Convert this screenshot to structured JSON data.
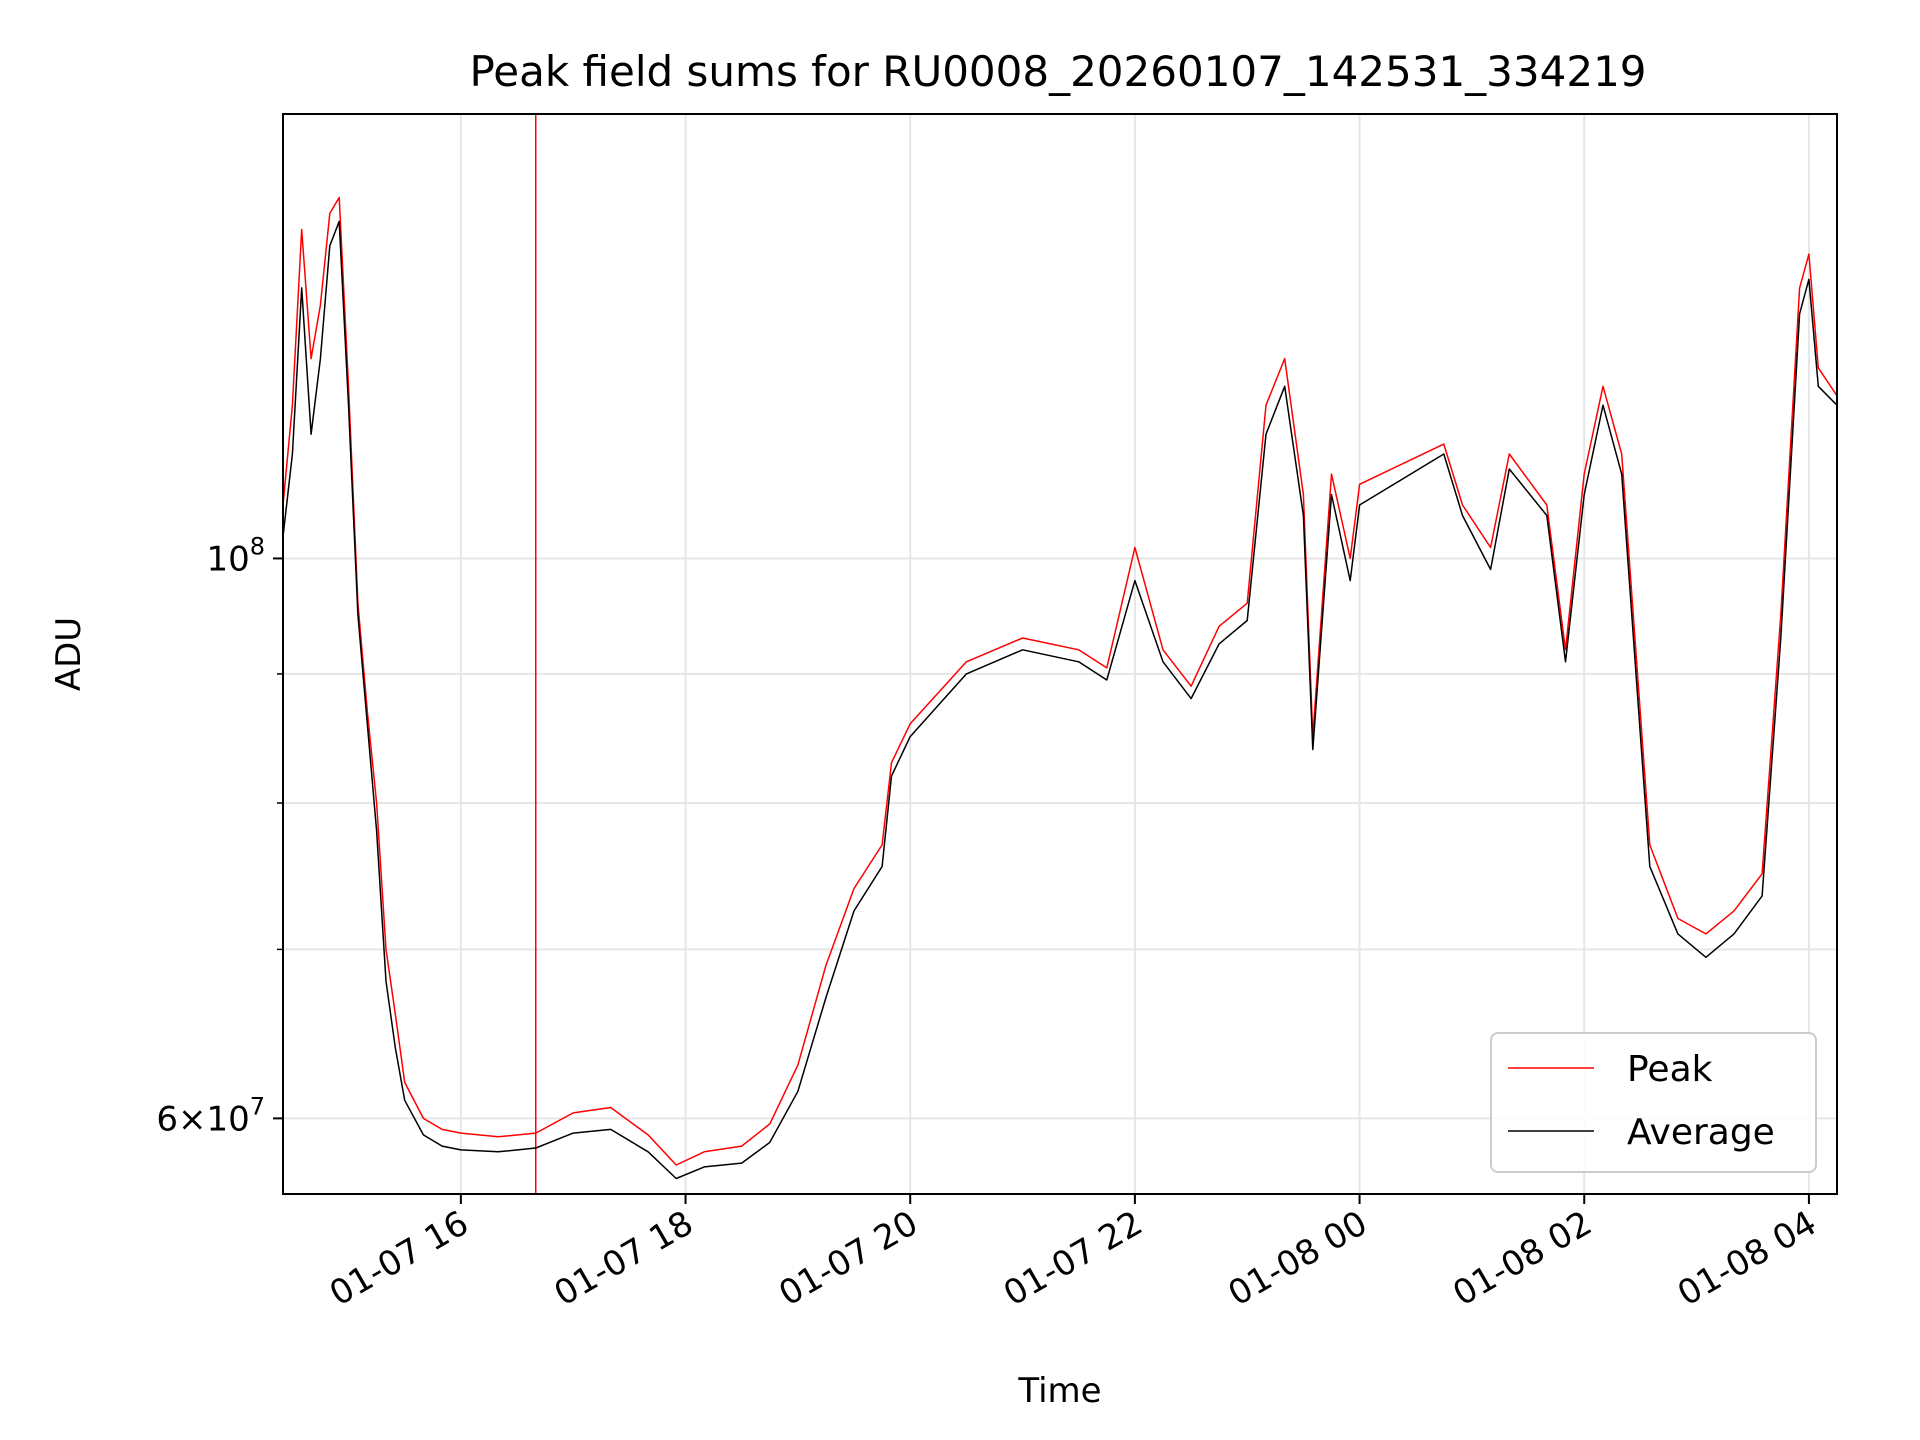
{
  "chart_data": {
    "type": "line",
    "title": "Peak field sums for RU0008_20260107_142531_334219",
    "xlabel": "Time",
    "ylabel": "ADU",
    "x_axis": "datetime",
    "y_scale": "log",
    "xlim": [
      "2026-01-07 14:25",
      "2026-01-08 04:15"
    ],
    "ylim": [
      56000000.0,
      150000000.0
    ],
    "x_ticks": [
      {
        "t": "2026-01-07 16:00",
        "label": "01-07 16"
      },
      {
        "t": "2026-01-07 18:00",
        "label": "01-07 18"
      },
      {
        "t": "2026-01-07 20:00",
        "label": "01-07 20"
      },
      {
        "t": "2026-01-07 22:00",
        "label": "01-07 22"
      },
      {
        "t": "2026-01-08 00:00",
        "label": "01-08 00"
      },
      {
        "t": "2026-01-08 02:00",
        "label": "01-08 02"
      },
      {
        "t": "2026-01-08 04:00",
        "label": "01-08 04"
      }
    ],
    "y_ticks_major": [
      {
        "v": 100000000.0,
        "base": "10",
        "exp": "8"
      },
      {
        "v": 60000000.0,
        "mant": "6",
        "base": "10",
        "exp": "7"
      }
    ],
    "y_ticks_minor": [
      70000000.0,
      80000000.0,
      90000000.0
    ],
    "grid": true,
    "legend_position": "lower right",
    "series": [
      {
        "name": "Peak",
        "color": "#ff0000",
        "spike": {
          "t": "2026-01-07 16:40",
          "v": 150000000.0
        },
        "points": [
          [
            "2026-01-07 14:25",
            105000000.0
          ],
          [
            "2026-01-07 14:30",
            115000000.0
          ],
          [
            "2026-01-07 14:35",
            135000000.0
          ],
          [
            "2026-01-07 14:40",
            120000000.0
          ],
          [
            "2026-01-07 14:45",
            126000000.0
          ],
          [
            "2026-01-07 14:50",
            137000000.0
          ],
          [
            "2026-01-07 14:55",
            139000000.0
          ],
          [
            "2026-01-07 15:00",
            117000000.0
          ],
          [
            "2026-01-07 15:05",
            96000000.0
          ],
          [
            "2026-01-07 15:10",
            87000000.0
          ],
          [
            "2026-01-07 15:15",
            80000000.0
          ],
          [
            "2026-01-07 15:20",
            70000000.0
          ],
          [
            "2026-01-07 15:25",
            66000000.0
          ],
          [
            "2026-01-07 15:30",
            62000000.0
          ],
          [
            "2026-01-07 15:40",
            60000000.0
          ],
          [
            "2026-01-07 15:50",
            59400000.0
          ],
          [
            "2026-01-07 16:00",
            59200000.0
          ],
          [
            "2026-01-07 16:20",
            59000000.0
          ],
          [
            "2026-01-07 16:40",
            59200000.0
          ],
          [
            "2026-01-07 17:00",
            60300000.0
          ],
          [
            "2026-01-07 17:20",
            60600000.0
          ],
          [
            "2026-01-07 17:40",
            59100000.0
          ],
          [
            "2026-01-07 17:55",
            57500000.0
          ],
          [
            "2026-01-07 18:10",
            58200000.0
          ],
          [
            "2026-01-07 18:30",
            58500000.0
          ],
          [
            "2026-01-07 18:45",
            59700000.0
          ],
          [
            "2026-01-07 19:00",
            63000000.0
          ],
          [
            "2026-01-07 19:15",
            69000000.0
          ],
          [
            "2026-01-07 19:30",
            74000000.0
          ],
          [
            "2026-01-07 19:45",
            77000000.0
          ],
          [
            "2026-01-07 19:50",
            83000000.0
          ],
          [
            "2026-01-07 20:00",
            86000000.0
          ],
          [
            "2026-01-07 20:30",
            91000000.0
          ],
          [
            "2026-01-07 21:00",
            93000000.0
          ],
          [
            "2026-01-07 21:30",
            92000000.0
          ],
          [
            "2026-01-07 21:45",
            90500000.0
          ],
          [
            "2026-01-07 22:00",
            101000000.0
          ],
          [
            "2026-01-07 22:15",
            92000000.0
          ],
          [
            "2026-01-07 22:30",
            89000000.0
          ],
          [
            "2026-01-07 22:45",
            94000000.0
          ],
          [
            "2026-01-07 23:00",
            96000000.0
          ],
          [
            "2026-01-07 23:10",
            115000000.0
          ],
          [
            "2026-01-07 23:20",
            120000000.0
          ],
          [
            "2026-01-07 23:30",
            106000000.0
          ],
          [
            "2026-01-07 23:35",
            85000000.0
          ],
          [
            "2026-01-07 23:45",
            108000000.0
          ],
          [
            "2026-01-07 23:55",
            100000000.0
          ],
          [
            "2026-01-08 00:00",
            107000000.0
          ],
          [
            "2026-01-08 00:45",
            111000000.0
          ],
          [
            "2026-01-08 00:55",
            105000000.0
          ],
          [
            "2026-01-08 01:10",
            101000000.0
          ],
          [
            "2026-01-08 01:20",
            110000000.0
          ],
          [
            "2026-01-08 01:40",
            105000000.0
          ],
          [
            "2026-01-08 01:50",
            92000000.0
          ],
          [
            "2026-01-08 02:00",
            108000000.0
          ],
          [
            "2026-01-08 02:10",
            117000000.0
          ],
          [
            "2026-01-08 02:20",
            110000000.0
          ],
          [
            "2026-01-08 02:35",
            77000000.0
          ],
          [
            "2026-01-08 02:50",
            72000000.0
          ],
          [
            "2026-01-08 03:05",
            71000000.0
          ],
          [
            "2026-01-08 03:20",
            72500000.0
          ],
          [
            "2026-01-08 03:35",
            75000000.0
          ],
          [
            "2026-01-08 03:45",
            95000000.0
          ],
          [
            "2026-01-08 03:55",
            128000000.0
          ],
          [
            "2026-01-08 04:00",
            132000000.0
          ],
          [
            "2026-01-08 04:05",
            119000000.0
          ],
          [
            "2026-01-08 04:15",
            116000000.0
          ]
        ]
      },
      {
        "name": "Average",
        "color": "#000000",
        "points": [
          [
            "2026-01-07 14:25",
            102000000.0
          ],
          [
            "2026-01-07 14:30",
            110000000.0
          ],
          [
            "2026-01-07 14:35",
            128000000.0
          ],
          [
            "2026-01-07 14:40",
            112000000.0
          ],
          [
            "2026-01-07 14:45",
            120000000.0
          ],
          [
            "2026-01-07 14:50",
            133000000.0
          ],
          [
            "2026-01-07 14:55",
            136000000.0
          ],
          [
            "2026-01-07 15:00",
            115000000.0
          ],
          [
            "2026-01-07 15:05",
            95000000.0
          ],
          [
            "2026-01-07 15:10",
            86000000.0
          ],
          [
            "2026-01-07 15:15",
            78000000.0
          ],
          [
            "2026-01-07 15:20",
            68000000.0
          ],
          [
            "2026-01-07 15:25",
            64000000.0
          ],
          [
            "2026-01-07 15:30",
            61000000.0
          ],
          [
            "2026-01-07 15:40",
            59100000.0
          ],
          [
            "2026-01-07 15:50",
            58500000.0
          ],
          [
            "2026-01-07 16:00",
            58300000.0
          ],
          [
            "2026-01-07 16:20",
            58200000.0
          ],
          [
            "2026-01-07 16:40",
            58400000.0
          ],
          [
            "2026-01-07 17:00",
            59200000.0
          ],
          [
            "2026-01-07 17:20",
            59400000.0
          ],
          [
            "2026-01-07 17:40",
            58200000.0
          ],
          [
            "2026-01-07 17:55",
            56800000.0
          ],
          [
            "2026-01-07 18:10",
            57400000.0
          ],
          [
            "2026-01-07 18:30",
            57600000.0
          ],
          [
            "2026-01-07 18:45",
            58700000.0
          ],
          [
            "2026-01-07 19:00",
            61500000.0
          ],
          [
            "2026-01-07 19:15",
            67000000.0
          ],
          [
            "2026-01-07 19:30",
            72500000.0
          ],
          [
            "2026-01-07 19:45",
            75500000.0
          ],
          [
            "2026-01-07 19:50",
            82000000.0
          ],
          [
            "2026-01-07 20:00",
            85000000.0
          ],
          [
            "2026-01-07 20:30",
            90000000.0
          ],
          [
            "2026-01-07 21:00",
            92000000.0
          ],
          [
            "2026-01-07 21:30",
            91000000.0
          ],
          [
            "2026-01-07 21:45",
            89500000.0
          ],
          [
            "2026-01-07 22:00",
            98000000.0
          ],
          [
            "2026-01-07 22:15",
            91000000.0
          ],
          [
            "2026-01-07 22:30",
            88000000.0
          ],
          [
            "2026-01-07 22:45",
            92500000.0
          ],
          [
            "2026-01-07 23:00",
            94500000.0
          ],
          [
            "2026-01-07 23:10",
            112000000.0
          ],
          [
            "2026-01-07 23:20",
            117000000.0
          ],
          [
            "2026-01-07 23:30",
            104000000.0
          ],
          [
            "2026-01-07 23:35",
            84000000.0
          ],
          [
            "2026-01-07 23:45",
            106000000.0
          ],
          [
            "2026-01-07 23:55",
            98000000.0
          ],
          [
            "2026-01-08 00:00",
            105000000.0
          ],
          [
            "2026-01-08 00:45",
            110000000.0
          ],
          [
            "2026-01-08 00:55",
            104000000.0
          ],
          [
            "2026-01-08 01:10",
            99000000.0
          ],
          [
            "2026-01-08 01:20",
            108500000.0
          ],
          [
            "2026-01-08 01:40",
            104000000.0
          ],
          [
            "2026-01-08 01:50",
            91000000.0
          ],
          [
            "2026-01-08 02:00",
            106000000.0
          ],
          [
            "2026-01-08 02:10",
            115000000.0
          ],
          [
            "2026-01-08 02:20",
            108000000.0
          ],
          [
            "2026-01-08 02:35",
            75500000.0
          ],
          [
            "2026-01-08 02:50",
            71000000.0
          ],
          [
            "2026-01-08 03:05",
            69500000.0
          ],
          [
            "2026-01-08 03:20",
            71000000.0
          ],
          [
            "2026-01-08 03:35",
            73500000.0
          ],
          [
            "2026-01-08 03:45",
            93000000.0
          ],
          [
            "2026-01-08 03:55",
            125000000.0
          ],
          [
            "2026-01-08 04:00",
            129000000.0
          ],
          [
            "2026-01-08 04:05",
            117000000.0
          ],
          [
            "2026-01-08 04:15",
            115000000.0
          ]
        ]
      }
    ]
  }
}
